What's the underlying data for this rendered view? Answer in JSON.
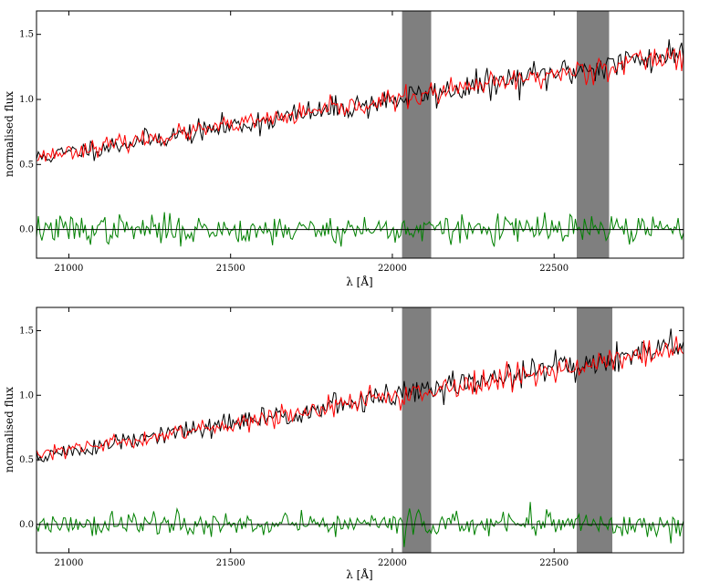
{
  "chart_data": [
    {
      "type": "line",
      "title": "",
      "xlabel": "λ [Å]",
      "ylabel": "normalised flux",
      "xlim": [
        20900,
        22900
      ],
      "ylim": [
        -0.22,
        1.68
      ],
      "xticks": [
        21000,
        21500,
        22000,
        22500
      ],
      "xtick_labels": [
        "21000",
        "21500",
        "22000",
        "22500"
      ],
      "yticks": [
        0.0,
        0.5,
        1.0,
        1.5
      ],
      "ytick_labels": [
        "0.0",
        "0.5",
        "1.0",
        "1.5"
      ],
      "grid": false,
      "shaded_regions": [
        [
          22030,
          22120
        ],
        [
          22570,
          22670
        ]
      ],
      "shade_color": "#7f7f7f",
      "series": [
        {
          "color": "#000000",
          "start": 0.55,
          "end": 1.36,
          "noise": 0.05,
          "seed": 11
        },
        {
          "color": "#ff0000",
          "start": 0.56,
          "end": 1.35,
          "noise": 0.04,
          "seed": 23
        },
        {
          "color": "#008000",
          "baseline": 0.0,
          "noise": 0.055,
          "seed": 37
        }
      ],
      "n_points": 360
    },
    {
      "type": "line",
      "title": "",
      "xlabel": "λ [Å]",
      "ylabel": "normalised flux",
      "xlim": [
        20900,
        22900
      ],
      "ylim": [
        -0.22,
        1.68
      ],
      "xticks": [
        21000,
        21500,
        22000,
        22500
      ],
      "xtick_labels": [
        "21000",
        "21500",
        "22000",
        "22500"
      ],
      "yticks": [
        0.0,
        0.5,
        1.0,
        1.5
      ],
      "ytick_labels": [
        "0.0",
        "0.5",
        "1.0",
        "1.5"
      ],
      "grid": false,
      "shaded_regions": [
        [
          22030,
          22120
        ],
        [
          22570,
          22680
        ]
      ],
      "shade_color": "#7f7f7f",
      "series": [
        {
          "color": "#000000",
          "start": 0.52,
          "end": 1.38,
          "noise": 0.05,
          "seed": 51
        },
        {
          "color": "#ff0000",
          "start": 0.53,
          "end": 1.36,
          "noise": 0.04,
          "seed": 63
        },
        {
          "color": "#008000",
          "baseline": 0.0,
          "noise": 0.05,
          "seed": 77
        }
      ],
      "n_points": 360
    }
  ]
}
